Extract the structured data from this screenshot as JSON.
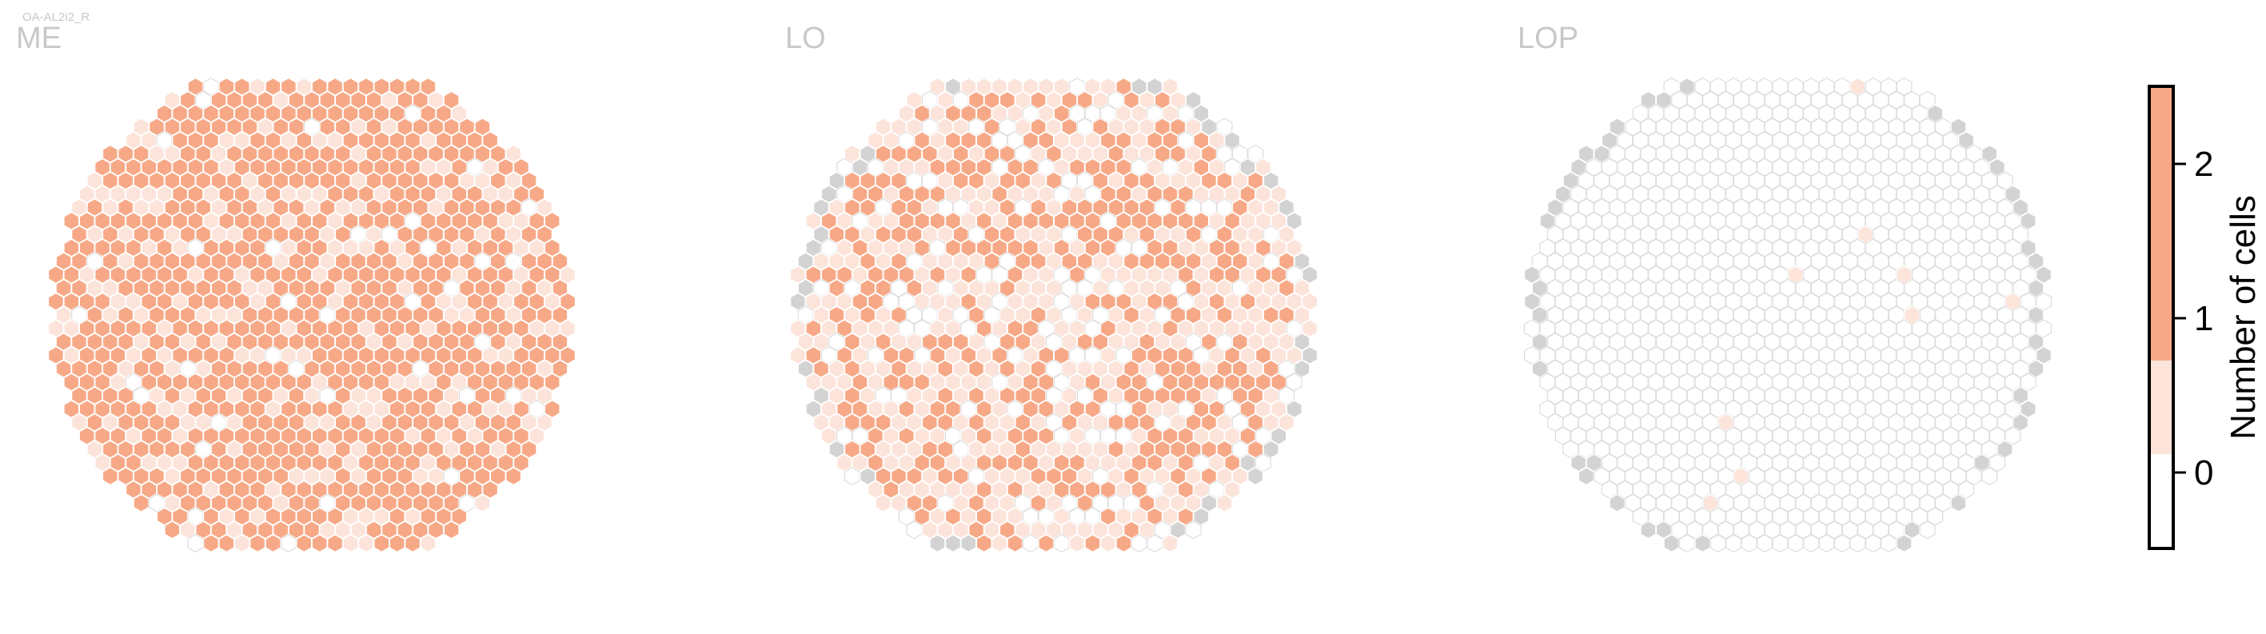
{
  "chart_data": {
    "type": "heatmap",
    "subtitle": "OA-AL2i2_R",
    "panels": [
      {
        "title": "ME",
        "radius": 17,
        "density_high": 0.74,
        "density_mid": 0.22,
        "border_rim_gray": false
      },
      {
        "title": "LO",
        "radius": 17,
        "density_high": 0.42,
        "density_mid": 0.42,
        "border_rim_gray": true
      },
      {
        "title": "LOP",
        "radius": 17,
        "density_high": 0.0,
        "density_mid": 0.008,
        "border_rim_gray": true
      }
    ],
    "colorbar": {
      "label": "Number of cells",
      "ticks": [
        0,
        1,
        2
      ],
      "range": [
        -0.5,
        2.5
      ],
      "colors": {
        "0": "#ffffff",
        "1": "#fce4da",
        "2": "#f7a987"
      }
    },
    "colors": {
      "missing": "#d3d3d3",
      "empty_stroke": "#dddddd",
      "cell_stroke": "#ffffff",
      "text_gray": "#c8c8c8"
    }
  }
}
